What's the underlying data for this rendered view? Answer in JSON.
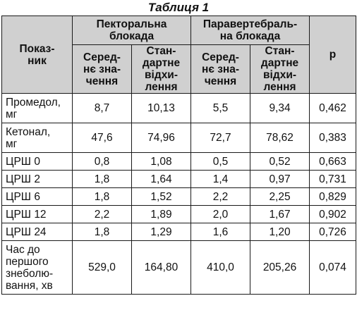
{
  "caption": "Таблиця 1",
  "header": {
    "indicator": "Показ-\nник",
    "group_pectoral": "Пекторальна\nблокада",
    "group_paravertebral": "Паравертебраль-\nна блокада",
    "sub_mean": "Серед-\nнє зна-\nчення",
    "sub_sd": "Стан-\nдартне\nвідхи-\nлення",
    "p": "р"
  },
  "rows": [
    {
      "label": "Промедол,\nмг",
      "pm": "8,7",
      "psd": "10,13",
      "vm": "5,5",
      "vsd": "9,34",
      "p": "0,462"
    },
    {
      "label": "Кетонал,\nмг",
      "pm": "47,6",
      "psd": "74,96",
      "vm": "72,7",
      "vsd": "78,62",
      "p": "0,383"
    },
    {
      "label": "ЦРШ 0",
      "pm": "0,8",
      "psd": "1,08",
      "vm": "0,5",
      "vsd": "0,52",
      "p": "0,663"
    },
    {
      "label": "ЦРШ 2",
      "pm": "1,8",
      "psd": "1,64",
      "vm": "1,4",
      "vsd": "0,97",
      "p": "0,731"
    },
    {
      "label": "ЦРШ 6",
      "pm": "1,8",
      "psd": "1,52",
      "vm": "2,2",
      "vsd": "2,25",
      "p": "0,829"
    },
    {
      "label": "ЦРШ 12",
      "pm": "2,2",
      "psd": "1,89",
      "vm": "2,0",
      "vsd": "1,67",
      "p": "0,902"
    },
    {
      "label": "ЦРШ 24",
      "pm": "1,8",
      "psd": "1,29",
      "vm": "1,6",
      "vsd": "1,20",
      "p": "0,726"
    },
    {
      "label": "Час до\nпершого\nзнеболю-\nвання, хв",
      "pm": "529,0",
      "psd": "164,80",
      "vm": "410,0",
      "vsd": "205,26",
      "p": "0,074"
    }
  ]
}
